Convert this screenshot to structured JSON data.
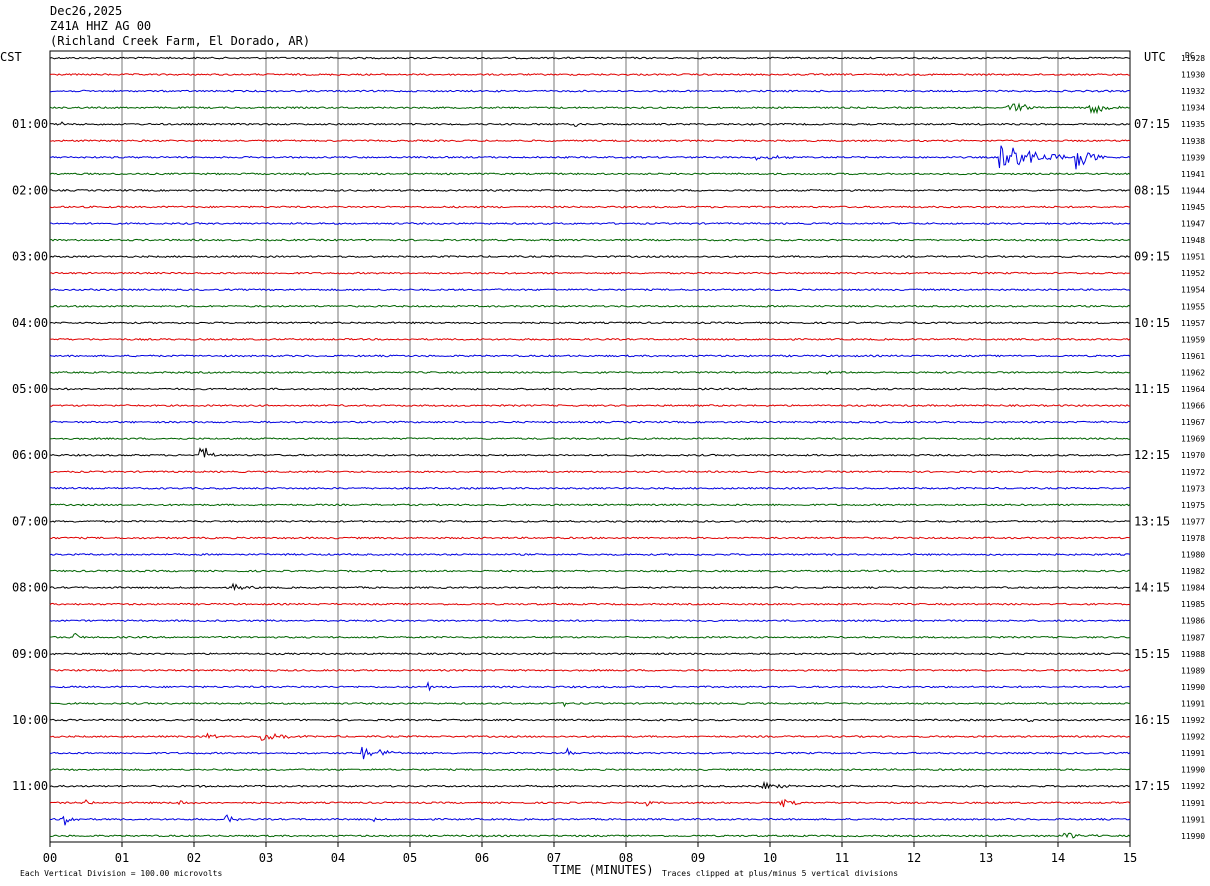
{
  "header": {
    "date": "Dec26,2025",
    "station": "Z41A HHZ AG 00",
    "location": "(Richland Creek Farm, El Dorado, AR)"
  },
  "labels": {
    "left_zone": "CST",
    "right_zone": "UTC",
    "dc_header": "DC",
    "xlabel": "TIME (MINUTES)",
    "scale_note": "Each Vertical Division =  100.00 microvolts",
    "clip_note": "Traces clipped at plus/minus 5 vertical divisions"
  },
  "colors": {
    "trace_cycle": [
      "#000000",
      "#e00000",
      "#0000e0",
      "#006400"
    ],
    "grid": "#000000",
    "background": "#ffffff"
  },
  "chart_data": {
    "type": "line",
    "title": "Dec26,2025 Z41A HHZ AG 00 (Richland Creek Farm, El Dorado, AR)",
    "xlabel": "TIME (MINUTES)",
    "xlim": [
      0,
      15
    ],
    "x_ticks": [
      "00",
      "01",
      "02",
      "03",
      "04",
      "05",
      "06",
      "07",
      "08",
      "09",
      "10",
      "11",
      "12",
      "13",
      "14",
      "15"
    ],
    "row_count": 48,
    "left_hour_labels": [
      {
        "row": 4,
        "label": "01:00"
      },
      {
        "row": 8,
        "label": "02:00"
      },
      {
        "row": 12,
        "label": "03:00"
      },
      {
        "row": 16,
        "label": "04:00"
      },
      {
        "row": 20,
        "label": "05:00"
      },
      {
        "row": 24,
        "label": "06:00"
      },
      {
        "row": 28,
        "label": "07:00"
      },
      {
        "row": 32,
        "label": "08:00"
      },
      {
        "row": 36,
        "label": "09:00"
      },
      {
        "row": 40,
        "label": "10:00"
      },
      {
        "row": 44,
        "label": "11:00"
      }
    ],
    "right_hour_labels": [
      {
        "row": 4,
        "label": "07:15"
      },
      {
        "row": 8,
        "label": "08:15"
      },
      {
        "row": 12,
        "label": "09:15"
      },
      {
        "row": 16,
        "label": "10:15"
      },
      {
        "row": 20,
        "label": "11:15"
      },
      {
        "row": 24,
        "label": "12:15"
      },
      {
        "row": 28,
        "label": "13:15"
      },
      {
        "row": 32,
        "label": "14:15"
      },
      {
        "row": 36,
        "label": "15:15"
      },
      {
        "row": 40,
        "label": "16:15"
      },
      {
        "row": 44,
        "label": "17:15"
      }
    ],
    "dc_values": [
      "11928",
      "11930",
      "11932",
      "11934",
      "11935",
      "11938",
      "11939",
      "11941",
      "11944",
      "11945",
      "11947",
      "11948",
      "11951",
      "11952",
      "11954",
      "11955",
      "11957",
      "11959",
      "11961",
      "11962",
      "11964",
      "11966",
      "11967",
      "11969",
      "11970",
      "11972",
      "11973",
      "11975",
      "11977",
      "11978",
      "11980",
      "11982",
      "11984",
      "11985",
      "11986",
      "11987",
      "11988",
      "11989",
      "11990",
      "11991",
      "11992",
      "11992",
      "11991",
      "11990",
      "11992",
      "11991",
      "11991",
      "11990"
    ],
    "events": [
      {
        "row": 0,
        "t": 1.55,
        "amp": 2,
        "dur": 0.1
      },
      {
        "row": 3,
        "t": 13.3,
        "amp": 9,
        "dur": 0.4
      },
      {
        "row": 3,
        "t": 14.45,
        "amp": 7,
        "dur": 0.5
      },
      {
        "row": 4,
        "t": 0.15,
        "amp": 3,
        "dur": 0.15
      },
      {
        "row": 4,
        "t": 7.3,
        "amp": 4,
        "dur": 0.05
      },
      {
        "row": 6,
        "t": 13.2,
        "amp": 16,
        "dur": 0.9
      },
      {
        "row": 6,
        "t": 14.25,
        "amp": 12,
        "dur": 0.45
      },
      {
        "row": 6,
        "t": 9.8,
        "amp": 3,
        "dur": 0.6
      },
      {
        "row": 7,
        "t": 3.2,
        "amp": 2,
        "dur": 0.5
      },
      {
        "row": 19,
        "t": 10.75,
        "amp": 2,
        "dur": 0.3
      },
      {
        "row": 24,
        "t": 2.1,
        "amp": 12,
        "dur": 0.25
      },
      {
        "row": 32,
        "t": 2.55,
        "amp": 3,
        "dur": 0.35
      },
      {
        "row": 35,
        "t": 0.35,
        "amp": 5,
        "dur": 0.15
      },
      {
        "row": 38,
        "t": 5.25,
        "amp": 6,
        "dur": 0.06
      },
      {
        "row": 39,
        "t": 7.15,
        "amp": 3,
        "dur": 0.2
      },
      {
        "row": 40,
        "t": 13.6,
        "amp": 4,
        "dur": 0.08
      },
      {
        "row": 41,
        "t": 2.95,
        "amp": 6,
        "dur": 0.6
      },
      {
        "row": 41,
        "t": 2.2,
        "amp": 3,
        "dur": 0.3
      },
      {
        "row": 42,
        "t": 4.35,
        "amp": 7,
        "dur": 0.6
      },
      {
        "row": 42,
        "t": 7.2,
        "amp": 4,
        "dur": 0.1
      },
      {
        "row": 44,
        "t": 9.9,
        "amp": 5,
        "dur": 0.5
      },
      {
        "row": 44,
        "t": 2.1,
        "amp": 2,
        "dur": 0.2
      },
      {
        "row": 45,
        "t": 0.5,
        "amp": 4,
        "dur": 0.15
      },
      {
        "row": 45,
        "t": 1.8,
        "amp": 4,
        "dur": 0.2
      },
      {
        "row": 45,
        "t": 10.15,
        "amp": 5,
        "dur": 0.35
      },
      {
        "row": 45,
        "t": 8.3,
        "amp": 3,
        "dur": 0.1
      },
      {
        "row": 46,
        "t": 0.2,
        "amp": 7,
        "dur": 0.2
      },
      {
        "row": 46,
        "t": 2.45,
        "amp": 5,
        "dur": 0.2
      },
      {
        "row": 46,
        "t": 4.5,
        "amp": 3,
        "dur": 0.15
      },
      {
        "row": 47,
        "t": 14.1,
        "amp": 4,
        "dur": 0.5
      },
      {
        "row": 47,
        "t": 6.0,
        "amp": 3,
        "dur": 0.15
      }
    ]
  }
}
